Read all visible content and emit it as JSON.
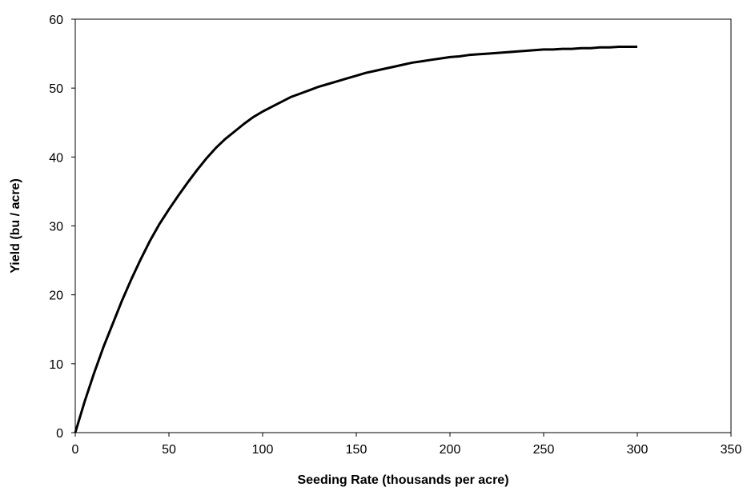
{
  "chart_data": {
    "type": "line",
    "title": "",
    "xlabel": "Seeding Rate (thousands per acre)",
    "ylabel": "Yield (bu / acre)",
    "xlim": [
      0,
      350
    ],
    "ylim": [
      0,
      60
    ],
    "x_ticks": [
      0,
      50,
      100,
      150,
      200,
      250,
      300,
      350
    ],
    "y_ticks": [
      0,
      10,
      20,
      30,
      40,
      50,
      60
    ],
    "grid": false,
    "legend": "none",
    "line_color": "#000000",
    "series": [
      {
        "x": [
          0,
          5,
          10,
          15,
          20,
          25,
          30,
          35,
          40,
          45,
          50,
          55,
          60,
          65,
          70,
          75,
          80,
          85,
          90,
          95,
          100,
          105,
          110,
          115,
          120,
          125,
          130,
          135,
          140,
          145,
          150,
          155,
          160,
          165,
          170,
          175,
          180,
          185,
          190,
          195,
          200,
          205,
          210,
          215,
          220,
          225,
          230,
          235,
          240,
          245,
          250,
          255,
          260,
          265,
          270,
          275,
          280,
          285,
          290,
          295,
          300
        ],
        "y": [
          0,
          4.5,
          8.6,
          12.4,
          15.8,
          19.2,
          22.3,
          25.2,
          27.9,
          30.3,
          32.4,
          34.4,
          36.3,
          38.1,
          39.8,
          41.3,
          42.6,
          43.7,
          44.8,
          45.8,
          46.6,
          47.3,
          48.0,
          48.7,
          49.2,
          49.7,
          50.2,
          50.6,
          51.0,
          51.4,
          51.8,
          52.2,
          52.5,
          52.8,
          53.1,
          53.4,
          53.7,
          53.9,
          54.1,
          54.3,
          54.5,
          54.6,
          54.8,
          54.9,
          55.0,
          55.1,
          55.2,
          55.3,
          55.4,
          55.5,
          55.6,
          55.6,
          55.7,
          55.7,
          55.8,
          55.8,
          55.9,
          55.9,
          56.0,
          56.0,
          56.0
        ]
      }
    ]
  }
}
